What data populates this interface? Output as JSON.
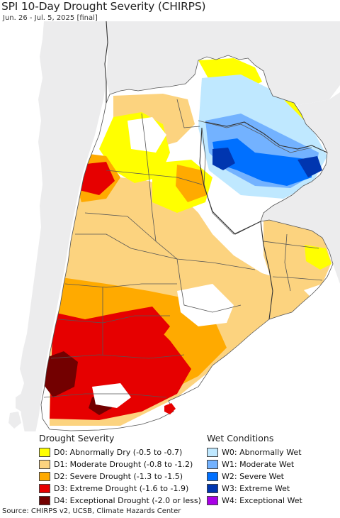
{
  "header": {
    "title": "SPI 10-Day Drought Severity (CHIRPS)",
    "subtitle": "Jun. 26 - Jul. 5, 2025 [final]"
  },
  "map": {
    "colors": {
      "ocean": "#ffffff",
      "outside_land": "#ececed",
      "no_drought": "#ffffff",
      "boundary": "#555555"
    }
  },
  "legend": {
    "drought": {
      "heading": "Drought Severity",
      "items": [
        {
          "label": "D0: Abnormally Dry (-0.5 to -0.7)",
          "color": "#ffff00"
        },
        {
          "label": "D1: Moderate Drought (-0.8 to -1.2)",
          "color": "#fcd37f"
        },
        {
          "label": "D2: Severe Drought (-1.3 to -1.5)",
          "color": "#ffaa00"
        },
        {
          "label": "D3: Extreme Drought (-1.6 to -1.9)",
          "color": "#e60000"
        },
        {
          "label": "D4: Exceptional Drought (-2.0 or less)",
          "color": "#730000"
        }
      ]
    },
    "wet": {
      "heading": "Wet Conditions",
      "items": [
        {
          "label": "W0: Abnormally Wet",
          "color": "#bfe8ff"
        },
        {
          "label": "W1: Moderate Wet",
          "color": "#73b2ff"
        },
        {
          "label": "W2: Severe Wet",
          "color": "#0070ff"
        },
        {
          "label": "W3: Extreme Wet",
          "color": "#0036b0"
        },
        {
          "label": "W4: Exceptional Wet",
          "color": "#a800e6"
        }
      ]
    }
  },
  "footer": {
    "source": "Source: CHIRPS v2, UCSB, Climate Hazards Center"
  }
}
